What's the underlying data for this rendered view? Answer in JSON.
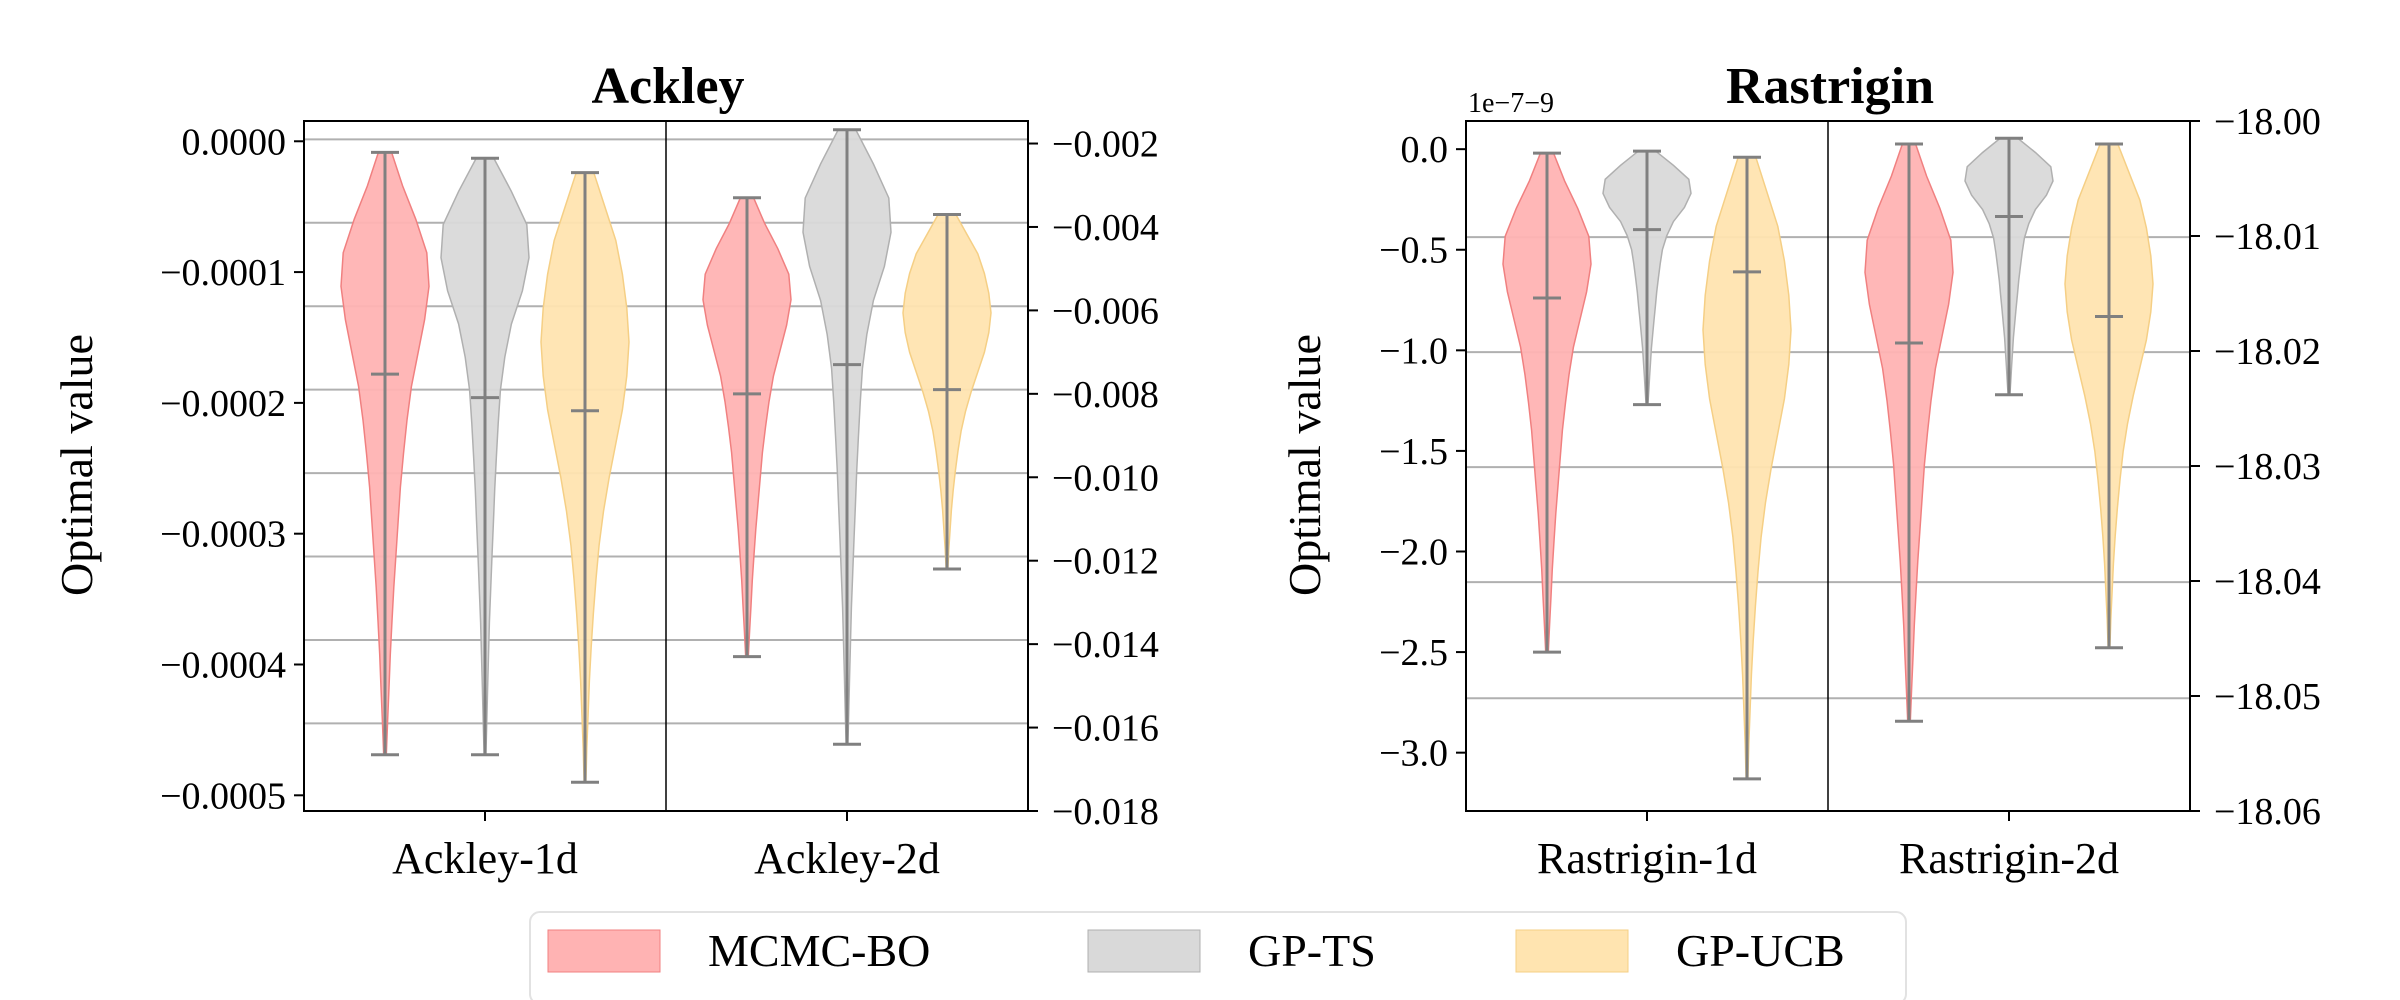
{
  "chart_data": [
    {
      "type": "violin",
      "title": "Ackley",
      "ylabel": "Optimal value",
      "categories": [
        "Ackley-1d",
        "Ackley-2d"
      ],
      "left_axis": {
        "ylim": [
          -0.000512,
          1.55e-05
        ],
        "ticks": [
          0.0,
          -0.0001,
          -0.0002,
          -0.0003,
          -0.0004,
          -0.0005
        ],
        "tick_labels": [
          "0.0000",
          "−0.0001",
          "−0.0002",
          "−0.0003",
          "−0.0004",
          "−0.0005"
        ]
      },
      "right_axis": {
        "ylim": [
          -0.018,
          -0.00146
        ],
        "ticks": [
          -0.002,
          -0.004,
          -0.006,
          -0.008,
          -0.01,
          -0.012,
          -0.014,
          -0.016,
          -0.018
        ],
        "tick_labels": [
          "−0.002",
          "−0.004",
          "−0.006",
          "−0.008",
          "−0.010",
          "−0.012",
          "−0.014",
          "−0.016",
          "−0.018"
        ]
      },
      "gridlines_right": [
        -0.0019,
        -0.0039,
        -0.0059,
        -0.0079,
        -0.0099,
        -0.0119,
        -0.0139,
        -0.0159
      ],
      "groups": [
        {
          "category": "Ackley-1d",
          "axis": "left",
          "series": [
            {
              "name": "MCMC-BO",
              "max": -8.5e-06,
              "mean": -0.000178,
              "min": -0.000469
            },
            {
              "name": "GP-TS",
              "max": -1.3e-05,
              "mean": -0.000196,
              "min": -0.000469
            },
            {
              "name": "GP-UCB",
              "max": -2.4e-05,
              "mean": -0.000206,
              "min": -0.00049
            }
          ]
        },
        {
          "category": "Ackley-2d",
          "axis": "right",
          "series": [
            {
              "name": "MCMC-BO",
              "max": -0.0033,
              "mean": -0.008,
              "min": -0.0143
            },
            {
              "name": "GP-TS",
              "max": -0.00167,
              "mean": -0.0073,
              "min": -0.0164
            },
            {
              "name": "GP-UCB",
              "max": -0.0037,
              "mean": -0.0079,
              "min": -0.0122
            }
          ]
        }
      ]
    },
    {
      "type": "violin",
      "title": "Rastrigin",
      "ylabel": "Optimal value",
      "categories": [
        "Rastrigin-1d",
        "Rastrigin-2d"
      ],
      "left_axis": {
        "offset_label": "1e−7−9",
        "ylim": [
          -3.29,
          0.14
        ],
        "ticks": [
          0.0,
          -0.5,
          -1.0,
          -1.5,
          -2.0,
          -2.5,
          -3.0
        ],
        "tick_labels": [
          "0.0",
          "−0.5",
          "−1.0",
          "−1.5",
          "−2.0",
          "−2.5",
          "−3.0"
        ]
      },
      "right_axis": {
        "ylim": [
          -18.06,
          -18.0
        ],
        "ticks": [
          -18.0,
          -18.01,
          -18.02,
          -18.03,
          -18.04,
          -18.05,
          -18.06
        ],
        "tick_labels": [
          "−18.00",
          "−18.01",
          "−18.02",
          "−18.03",
          "−18.04",
          "−18.05",
          "−18.06"
        ]
      },
      "gridlines_right": [
        -18.0101,
        -18.0201,
        -18.0301,
        -18.0401,
        -18.0502
      ],
      "groups": [
        {
          "category": "Rastrigin-1d",
          "axis": "left",
          "series": [
            {
              "name": "MCMC-BO",
              "max": -0.02,
              "mean": -0.74,
              "min": -2.5
            },
            {
              "name": "GP-TS",
              "max": -0.01,
              "mean": -0.4,
              "min": -1.27
            },
            {
              "name": "GP-UCB",
              "max": -0.04,
              "mean": -0.61,
              "min": -3.13
            }
          ]
        },
        {
          "category": "Rastrigin-2d",
          "axis": "right",
          "series": [
            {
              "name": "MCMC-BO",
              "max": -18.002,
              "mean": -18.0193,
              "min": -18.0522
            },
            {
              "name": "GP-TS",
              "max": -18.0015,
              "mean": -18.0083,
              "min": -18.0238
            },
            {
              "name": "GP-UCB",
              "max": -18.002,
              "mean": -18.017,
              "min": -18.0458
            }
          ]
        }
      ]
    }
  ],
  "legend": {
    "items": [
      {
        "name": "MCMC-BO",
        "color": "#ffb3b3"
      },
      {
        "name": "GP-TS",
        "color": "#d9d9d9"
      },
      {
        "name": "GP-UCB",
        "color": "#ffe4b0"
      }
    ]
  },
  "colors": {
    "MCMC-BO": {
      "fill": "#ffb3b3",
      "stroke": "#f08080"
    },
    "GP-TS": {
      "fill": "#d9d9d9",
      "stroke": "#b0b0b0"
    },
    "GP-UCB": {
      "fill": "#ffe4b0",
      "stroke": "#f5cf85"
    },
    "whisker": "#808080",
    "grid": "#b0b0b0"
  }
}
